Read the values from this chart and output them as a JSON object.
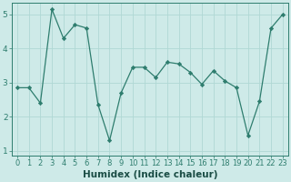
{
  "x": [
    0,
    1,
    2,
    3,
    4,
    5,
    6,
    7,
    8,
    9,
    10,
    11,
    12,
    13,
    14,
    15,
    16,
    17,
    18,
    19,
    20,
    21,
    22,
    23
  ],
  "y": [
    2.85,
    2.85,
    2.4,
    5.15,
    4.3,
    4.7,
    4.6,
    2.35,
    1.3,
    2.7,
    3.45,
    3.45,
    3.15,
    3.6,
    3.55,
    3.3,
    2.95,
    3.35,
    3.05,
    2.85,
    1.45,
    2.45,
    4.6,
    5.0
  ],
  "line_color": "#2e7d6e",
  "marker": "D",
  "marker_size": 2.2,
  "bg_color": "#ceeae8",
  "grid_color": "#b0d8d4",
  "xlabel": "Humidex (Indice chaleur)",
  "xlabel_weight": "bold",
  "ylim": [
    0.85,
    5.35
  ],
  "xlim": [
    -0.5,
    23.5
  ],
  "yticks": [
    1,
    2,
    3,
    4,
    5
  ],
  "xticks": [
    0,
    1,
    2,
    3,
    4,
    5,
    6,
    7,
    8,
    9,
    10,
    11,
    12,
    13,
    14,
    15,
    16,
    17,
    18,
    19,
    20,
    21,
    22,
    23
  ],
  "tick_color": "#2e7d6e",
  "label_color": "#1a4d45",
  "tick_fontsize": 6,
  "xlabel_fontsize": 7.5
}
